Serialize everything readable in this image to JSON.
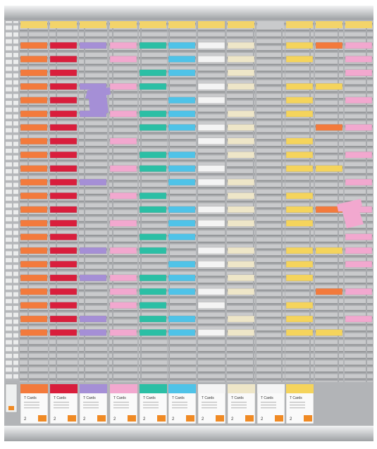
{
  "boxes": [
    {
      "label": "T Cards",
      "count": "2"
    },
    {
      "label": "T Cards",
      "count": "2"
    },
    {
      "label": "T Cards",
      "count": "2"
    },
    {
      "label": "T Cards",
      "count": "2"
    },
    {
      "label": "T Cards",
      "count": "2"
    },
    {
      "label": "T Cards",
      "count": "2"
    },
    {
      "label": "T Cards",
      "count": "2"
    },
    {
      "label": "T Cards",
      "count": "2"
    },
    {
      "label": "T Cards",
      "count": "2"
    },
    {
      "label": "T Cards",
      "count": "2"
    }
  ]
}
